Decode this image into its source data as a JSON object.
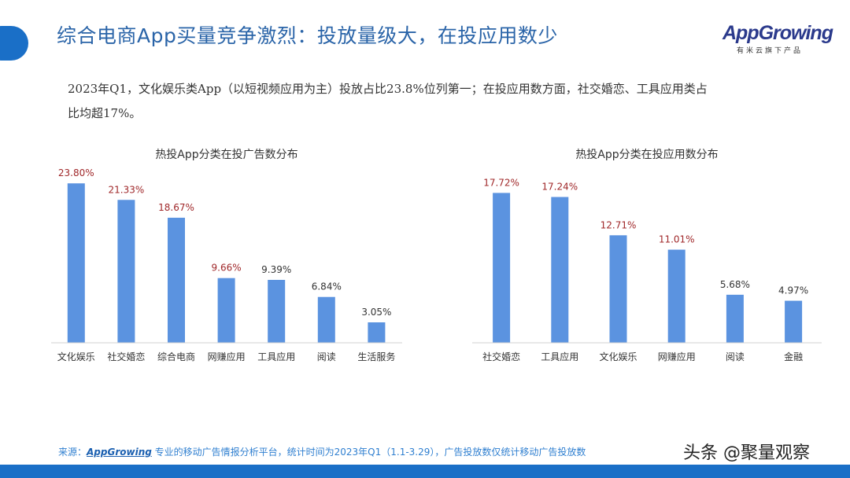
{
  "header": {
    "title": "综合电商App买量竞争激烈：投放量级大，在投应用数少",
    "logo_text": "AppGrowing",
    "logo_subtext": "有米云旗下产品",
    "accent_color": "#1a6fc7"
  },
  "description": "2023年Q1，文化娱乐类App（以短视频应用为主）投放占比23.8%位列第一；在投应用数方面，社交婚恋、工具应用类占比均超17%。",
  "chart_data": [
    {
      "type": "bar",
      "title": "热投App分类在投广告数分布",
      "categories": [
        "文化娱乐",
        "社交婚恋",
        "综合电商",
        "网赚应用",
        "工具应用",
        "阅读",
        "生活服务"
      ],
      "values": [
        23.8,
        21.33,
        18.67,
        9.66,
        9.39,
        6.84,
        3.05
      ],
      "labels": [
        "23.80%",
        "21.33%",
        "18.67%",
        "9.66%",
        "9.39%",
        "6.84%",
        "3.05%"
      ],
      "label_colors": [
        "#a0282a",
        "#a0282a",
        "#a0282a",
        "#a0282a",
        "#333333",
        "#333333",
        "#333333"
      ],
      "bar_color": "#5b93e0",
      "ylim": [
        0,
        25
      ],
      "grid": false
    },
    {
      "type": "bar",
      "title": "热投App分类在投应用数分布",
      "categories": [
        "社交婚恋",
        "工具应用",
        "文化娱乐",
        "网赚应用",
        "阅读",
        "金融"
      ],
      "values": [
        17.72,
        17.24,
        12.71,
        11.01,
        5.68,
        4.97
      ],
      "labels": [
        "17.72%",
        "17.24%",
        "12.71%",
        "11.01%",
        "5.68%",
        "4.97%"
      ],
      "label_colors": [
        "#a0282a",
        "#a0282a",
        "#a0282a",
        "#a0282a",
        "#333333",
        "#333333"
      ],
      "bar_color": "#5b93e0",
      "ylim": [
        0,
        18.5
      ],
      "grid": false
    }
  ],
  "footer": {
    "prefix": "来源：",
    "brand": "AppGrowing",
    "text": " 专业的移动广告情报分析平台，统计时间为2023年Q1（1.1-3.29），广告投放数仅统计移动广告投放数"
  },
  "watermark": "头条 @聚量观察"
}
